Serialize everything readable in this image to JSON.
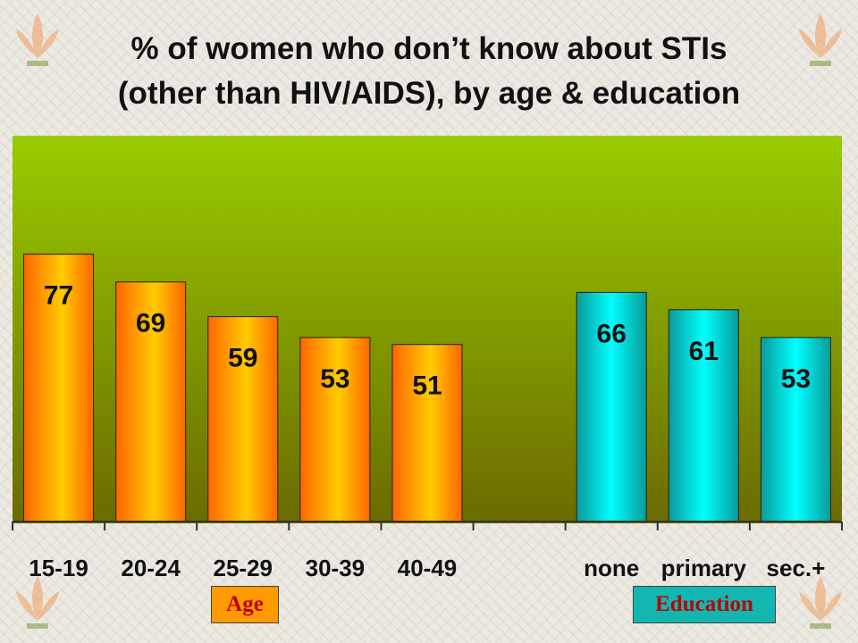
{
  "title_line1": "% of women who don’t know about STIs",
  "title_line2": "(other than HIV/AIDS), by age & education",
  "chart_data": {
    "type": "bar",
    "title": "% of women who don’t know about STIs (other than HIV/AIDS), by age & education",
    "categories": [
      "15-19",
      "20-24",
      "25-29",
      "30-39",
      "40-49",
      "",
      "none",
      "primary",
      "sec.+"
    ],
    "values": [
      77,
      69,
      59,
      53,
      51,
      null,
      66,
      61,
      53
    ],
    "groups": [
      "Age",
      "Education"
    ],
    "group_index": [
      0,
      0,
      0,
      0,
      0,
      null,
      1,
      1,
      1
    ],
    "xlabel": "",
    "ylabel": "",
    "ylim": [
      0,
      100
    ],
    "grid": false,
    "legend": "none",
    "colors": {
      "plot_bg_top": "#99cc00",
      "plot_bg_bottom": "#6b6a00",
      "age_bar_outer": "#ff6600",
      "age_bar_inner": "#ffcc00",
      "edu_bar_outer": "#0a9a9a",
      "edu_bar_inner": "#00ffff"
    }
  },
  "group_labels": {
    "age": "Age",
    "education": "Education"
  }
}
